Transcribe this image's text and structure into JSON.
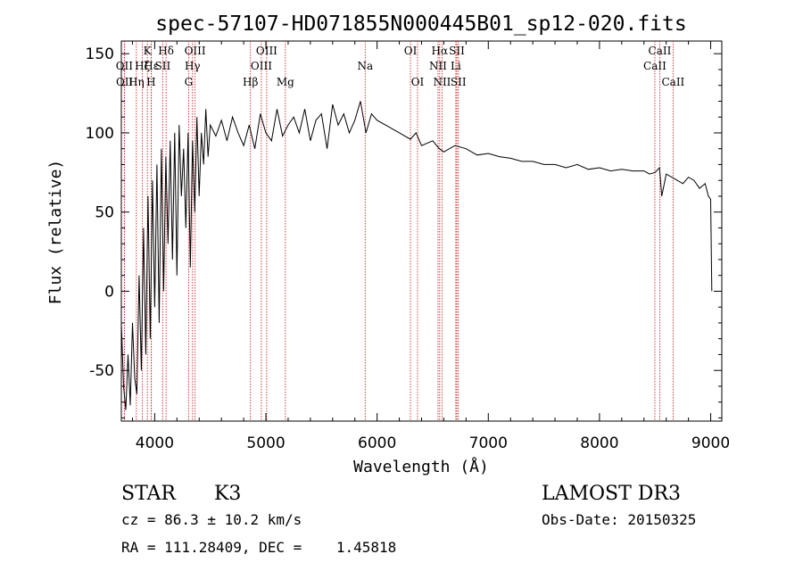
{
  "chart_data": {
    "type": "line",
    "title": "spec-57107-HD071855N000445B01_sp12-020.fits",
    "xlabel": "Wavelength (Å)",
    "ylabel": "Flux (relative)",
    "xlim": [
      3700,
      9100
    ],
    "ylim": [
      -82,
      158
    ],
    "xticks": [
      4000,
      5000,
      6000,
      7000,
      8000,
      9000
    ],
    "yticks": [
      -50,
      0,
      50,
      100,
      150
    ],
    "series": [
      {
        "name": "flux",
        "x": [
          3700,
          3720,
          3740,
          3760,
          3780,
          3800,
          3820,
          3840,
          3860,
          3880,
          3900,
          3920,
          3940,
          3960,
          3980,
          4000,
          4020,
          4040,
          4060,
          4080,
          4100,
          4120,
          4140,
          4160,
          4180,
          4200,
          4220,
          4240,
          4260,
          4280,
          4300,
          4320,
          4340,
          4360,
          4380,
          4400,
          4420,
          4440,
          4460,
          4480,
          4500,
          4550,
          4600,
          4650,
          4700,
          4750,
          4800,
          4850,
          4900,
          4950,
          5000,
          5050,
          5100,
          5150,
          5200,
          5250,
          5300,
          5350,
          5400,
          5450,
          5500,
          5550,
          5600,
          5650,
          5700,
          5750,
          5800,
          5850,
          5900,
          5950,
          6000,
          6100,
          6200,
          6300,
          6350,
          6400,
          6500,
          6560,
          6600,
          6700,
          6800,
          6900,
          7000,
          7100,
          7200,
          7300,
          7400,
          7500,
          7600,
          7700,
          7800,
          7900,
          8000,
          8100,
          8200,
          8300,
          8400,
          8450,
          8500,
          8540,
          8560,
          8600,
          8650,
          8700,
          8750,
          8800,
          8850,
          8900,
          8950,
          8980,
          9000,
          9010
        ],
        "values": [
          -20,
          -60,
          -75,
          -40,
          -72,
          -20,
          -55,
          -65,
          10,
          -50,
          40,
          -40,
          60,
          -30,
          70,
          -10,
          80,
          -20,
          90,
          0,
          85,
          30,
          95,
          20,
          100,
          10,
          105,
          60,
          90,
          40,
          100,
          15,
          95,
          50,
          110,
          60,
          100,
          80,
          115,
          85,
          105,
          98,
          108,
          95,
          110,
          100,
          92,
          105,
          90,
          112,
          100,
          95,
          115,
          98,
          105,
          110,
          100,
          115,
          95,
          108,
          112,
          90,
          118,
          105,
          112,
          100,
          108,
          120,
          100,
          112,
          108,
          104,
          100,
          96,
          100,
          92,
          95,
          90,
          88,
          92,
          90,
          86,
          87,
          85,
          84,
          82,
          82,
          80,
          80,
          78,
          80,
          77,
          78,
          76,
          77,
          76,
          76,
          74,
          75,
          78,
          60,
          74,
          72,
          70,
          68,
          72,
          70,
          65,
          68,
          60,
          58,
          0
        ]
      }
    ],
    "line_markers": [
      {
        "label": "Hα",
        "x": 6563,
        "row": 0
      },
      {
        "label": "Hβ",
        "x": 4861,
        "row": 2
      },
      {
        "label": "Hγ",
        "x": 4340,
        "row": 1
      },
      {
        "label": "Hδ",
        "x": 4102,
        "row": 0
      },
      {
        "label": "Hε",
        "x": 3970,
        "row": 1
      },
      {
        "label": "Hζ",
        "x": 3889,
        "row": 1
      },
      {
        "label": "Hη",
        "x": 3835,
        "row": 2
      },
      {
        "label": "H",
        "x": 3968,
        "row": 2
      },
      {
        "label": "K",
        "x": 3934,
        "row": 0
      },
      {
        "label": "G",
        "x": 4305,
        "row": 2
      },
      {
        "label": "Mg",
        "x": 5175,
        "row": 2
      },
      {
        "label": "Na",
        "x": 5893,
        "row": 1
      },
      {
        "label": "OII",
        "x": 3727,
        "row": 1
      },
      {
        "label": "OII",
        "x": 3729,
        "row": 2
      },
      {
        "label": "OIII",
        "x": 4363,
        "row": 0
      },
      {
        "label": "OIII",
        "x": 4959,
        "row": 1
      },
      {
        "label": "OIII",
        "x": 5007,
        "row": 0
      },
      {
        "label": "OI",
        "x": 6300,
        "row": 0
      },
      {
        "label": "OI",
        "x": 6364,
        "row": 2
      },
      {
        "label": "NII",
        "x": 6548,
        "row": 1
      },
      {
        "label": "NII",
        "x": 6584,
        "row": 2
      },
      {
        "label": "SII",
        "x": 4072,
        "row": 1
      },
      {
        "label": "SII",
        "x": 6717,
        "row": 0
      },
      {
        "label": "SII",
        "x": 6731,
        "row": 2
      },
      {
        "label": "Li",
        "x": 6708,
        "row": 1
      },
      {
        "label": "CaII",
        "x": 8498,
        "row": 1
      },
      {
        "label": "CaII",
        "x": 8542,
        "row": 0
      },
      {
        "label": "CaII",
        "x": 8662,
        "row": 2
      }
    ]
  },
  "info": {
    "object_class": "STAR",
    "subclass": "K3",
    "survey": "LAMOST DR3",
    "cz": "cz = 86.3 ± 10.2 km/s",
    "obs_date": "Obs-Date: 20150325",
    "radec": "RA = 111.28409, DEC =    1.45818"
  },
  "colors": {
    "line": "#000000",
    "marker": "#cc2a2a"
  }
}
